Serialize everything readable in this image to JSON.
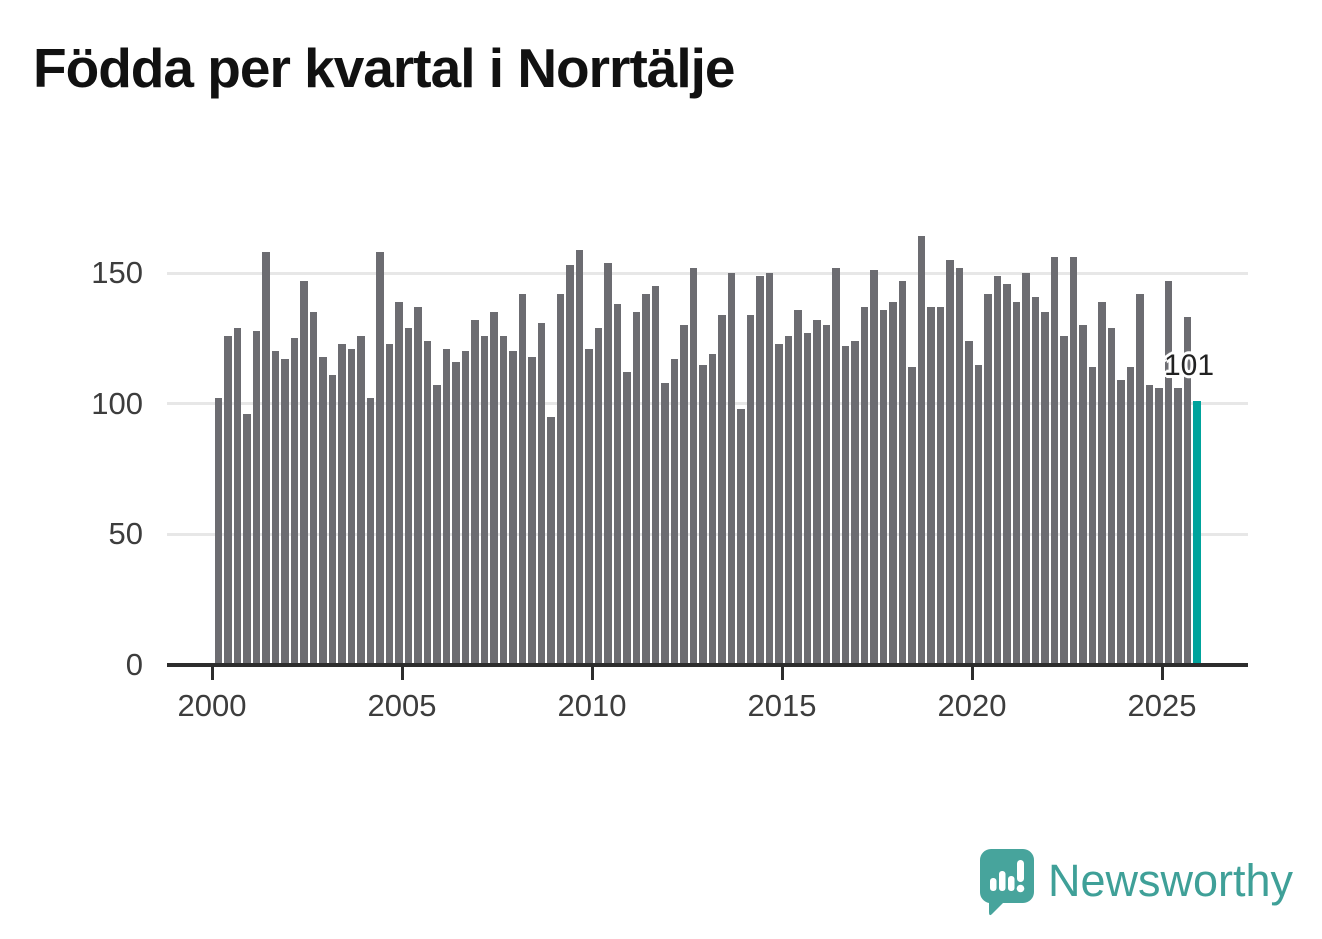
{
  "title": "Födda per kvartal i Norrtälje",
  "chart_data": {
    "type": "bar",
    "title": "Födda per kvartal i Norrtälje",
    "frequency": "quarterly",
    "start_year": 2000,
    "end_year": 2025,
    "values": [
      102,
      126,
      129,
      96,
      128,
      158,
      120,
      117,
      125,
      147,
      135,
      118,
      111,
      123,
      121,
      126,
      102,
      158,
      123,
      139,
      129,
      137,
      124,
      107,
      121,
      116,
      120,
      132,
      126,
      135,
      126,
      120,
      142,
      118,
      131,
      95,
      142,
      153,
      159,
      121,
      129,
      154,
      138,
      112,
      135,
      142,
      145,
      108,
      117,
      130,
      152,
      115,
      119,
      134,
      150,
      98,
      134,
      149,
      150,
      123,
      126,
      136,
      127,
      132,
      130,
      152,
      122,
      124,
      137,
      151,
      136,
      139,
      147,
      114,
      164,
      137,
      137,
      155,
      152,
      124,
      115,
      142,
      149,
      146,
      139,
      150,
      141,
      135,
      156,
      126,
      156,
      130,
      114,
      139,
      129,
      109,
      114,
      142,
      107,
      106,
      147,
      106,
      133,
      101
    ],
    "highlight_index": 103,
    "annotation": "101",
    "x_tick_years": [
      2000,
      2005,
      2010,
      2015,
      2020,
      2025
    ],
    "y_ticks": [
      0,
      50,
      100,
      150
    ],
    "ylim": [
      0,
      170
    ],
    "grid": true,
    "legend": "none",
    "bar_color": "#6c6c71",
    "highlight_color": "#00a39c"
  },
  "footer": {
    "logo_text": "Newsworthy",
    "logo_color": "#47a49c",
    "logo_text_color": "#3fa098"
  }
}
